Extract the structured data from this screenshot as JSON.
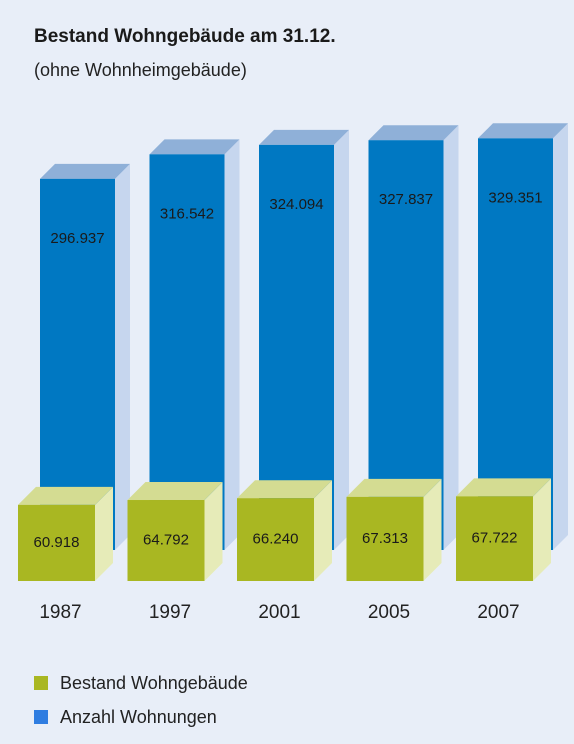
{
  "chart_data": {
    "type": "bar",
    "title": "Bestand Wohngebäude am 31.12.",
    "subtitle": "(ohne Wohnheimgebäude)",
    "categories": [
      "1987",
      "1997",
      "2001",
      "2005",
      "2007"
    ],
    "series": [
      {
        "name": "Anzahl Wohnungen",
        "values": [
          296937,
          316542,
          324094,
          327837,
          329351
        ],
        "labels": [
          "296.937",
          "316.542",
          "324.094",
          "327.837",
          "329.351"
        ],
        "color": "#0078c2",
        "top_color": "#8fb0d8",
        "side_color": "#c6d6ee"
      },
      {
        "name": "Bestand Wohngebäude",
        "values": [
          60918,
          64792,
          66240,
          67313,
          67722
        ],
        "labels": [
          "60.918",
          "64.792",
          "66.240",
          "67.313",
          "67.722"
        ],
        "color": "#a9b722",
        "top_color": "#d4dc92",
        "side_color": "#e6ebb8"
      }
    ],
    "legend": [
      {
        "label": "Bestand Wohngebäude",
        "color": "#a9b722"
      },
      {
        "label": "Anzahl Wohnungen",
        "color": "#2f7de1"
      }
    ]
  }
}
